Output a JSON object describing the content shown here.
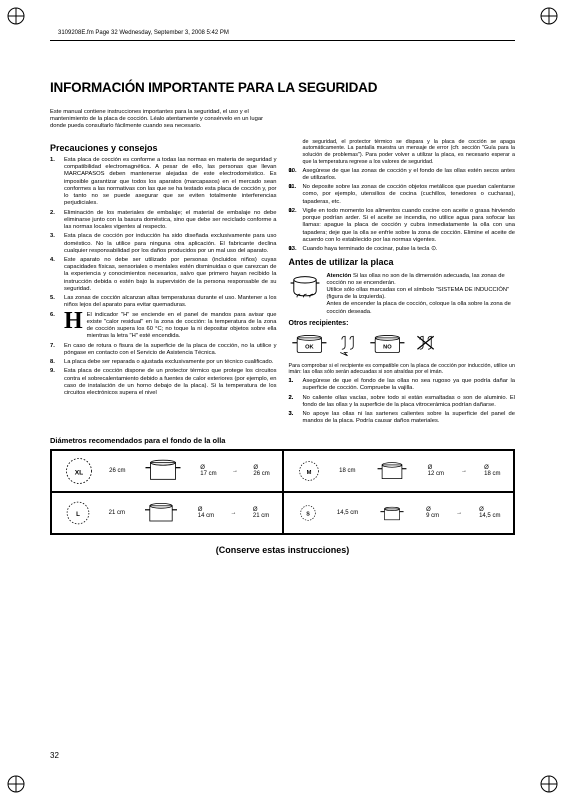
{
  "header": "3109208E.fm Page 32 Wednesday, September 3, 2008 5:42 PM",
  "title": "INFORMACIÓN IMPORTANTE PARA LA SEGURIDAD",
  "intro": "Este manual contiene instrucciones importantes para la seguridad, el uso y el mantenimiento de la placa de cocción. Léalo atentamente y consérvelo en un lugar donde pueda consultarlo fácilmente cuando sea necesario.",
  "precauciones_title": "Precauciones y consejos",
  "items_left": [
    "Esta placa de cocción es conforme a todas las normas en materia de seguridad y compatibilidad electromagnética. A pesar de ello, las personas que llevan MARCAPASOS deben mantenerse alejadas de este electrodoméstico. Es imposible garantizar que todos los aparatos (marcapasos) en el mercado sean conformes a las normativas con las que se ha testado esta placa de cocción y, por lo tanto no se puede asegurar que se eviten totalmente interferencias perjudiciales.",
    "Eliminación de los materiales de embalaje; el material de embalaje no debe eliminarse junto con la basura doméstica, sino que debe ser reciclado conforme a las normas locales vigentes al respecto.",
    "Esta placa de cocción por inducción ha sido diseñada exclusivamente para uso doméstico. No la utilice para ninguna otra aplicación. El fabricante declina cualquier responsabilidad por los daños producidos por un mal uso del aparato.",
    "Este aparato no debe ser utilizado por personas (incluidos niños) cuyas capacidades físicas, sensoriales o mentales estén disminuidas o que carezcan de la experiencia y conocimientos necesarios, salvo que primero hayan recibido la instrucción debida o estén bajo la supervisión de la persona responsable de su seguridad.",
    "Las zonas de cocción alcanzan altas temperaturas durante el uso. Mantener a los niños lejos del aparato para evitar quemaduras."
  ],
  "h_indicator": "El indicador \"H\" se enciende en el panel de mandos para avisar que existe \"calor residual\" en la zona de cocción: la temperatura de la zona de cocción supera los 60 °C; no toque la ni depositar objetos sobre ella mientras la letra \"H\" esté encendida.",
  "items_left_2": [
    "En caso de rotura o fisura de la superficie de la placa de cocción, no la utilice y póngase en contacto con el Servicio de Asistencia Técnica.",
    "La placa debe ser reparada o ajustada exclusivamente por un técnico cualificado.",
    "Esta placa de cocción dispone de un protector térmico que protege los circuitos contra el sobrecalentamiento debido a fuentes de calor exteriores (por ejemplo, en caso de instalación de un horno debajo de la placa). Si la temperatura de los circuitos electrónicos supera el nivel"
  ],
  "items_right_top": "de seguridad, el protector térmico se dispara y la placa de cocción se apaga automáticamente. La pantalla muestra un mensaje de error (cfr. sección \"Guía para la solución de problemas\"). Para poder volver a utilizar la placa, es necesario esperar a que la temperatura regrese a los valores de seguridad.",
  "items_right": [
    "Asegúrese de que las zonas de cocción y el fondo de las ollas estén secos antes de utilizarlos.",
    "No deposite sobre las zonas de cocción objetos metálicos que puedan calentarse como, por ejemplo, utensilios de cocina (cuchillos, tenedores o cucharas), tapaderas, etc.",
    "Vigile en todo momento los alimentos cuando cocine con aceite o grasa hirviendo porque podrían arder. Si el aceite se incendia, no utilice agua para sofocar las llamas: apague la placa de cocción y cubra inmediatamente la olla con una tapadera; deje que la olla se enfríe sobre la zona de cocción. Elimine el aceite de acuerdo con lo establecido por las normas vigentes.",
    "Cuando haya terminado de cocinar, pulse la tecla ⊙."
  ],
  "antes_title": "Antes de utilizar la placa",
  "atencion_bold": "Atención",
  "atencion_text": "Si las ollas no son de la dimensión adecuada, las zonas de cocción no se encenderán.",
  "atencion_text2": "Utilice sólo ollas marcadas con el símbolo \"SISTEMA DE INDUCCIÓN\" (figura de la izquierda).",
  "atencion_text3": "Antes de encender la placa de cocción, coloque la olla sobre la zona de cocción deseada.",
  "otros_title": "Otros recipientes:",
  "comprobar": "Para comprobar si el recipiente es compatible con la placa de cocción por inducción, utilice un imán: las ollas sólo serán adecuadas si son atraídas por el imán.",
  "otros_items": [
    "Asegúrese de que el fondo de las ollas no sea rugoso ya que podría dañar la superficie de cocción. Compruebe la vajilla.",
    "No caliente ollas vacías, sobre todo si están esmaltadas o son de aluminio. El fondo de las ollas y la superficie de la placa vitrocerámica podrían dañarse.",
    "No apoye las ollas ni las sartenes calientes sobre la superficie del panel de mandos de la placa. Podría causar daños materiales."
  ],
  "diametros_title": "Diámetros recomendados para el fondo de la olla",
  "diam": {
    "xl": {
      "label": "XL",
      "size": "26 cm",
      "range_a": "17 cm",
      "range_b": "26 cm"
    },
    "m": {
      "label": "M",
      "size": "18 cm",
      "range_a": "12 cm",
      "range_b": "18 cm"
    },
    "l": {
      "label": "L",
      "size": "21 cm",
      "range_a": "14 cm",
      "range_b": "21 cm"
    },
    "s": {
      "label": "S",
      "size": "14,5 cm",
      "range_a": "9 cm",
      "range_b": "14,5 cm"
    }
  },
  "conserve": "(Conserve estas instrucciones)",
  "page_num": "32"
}
